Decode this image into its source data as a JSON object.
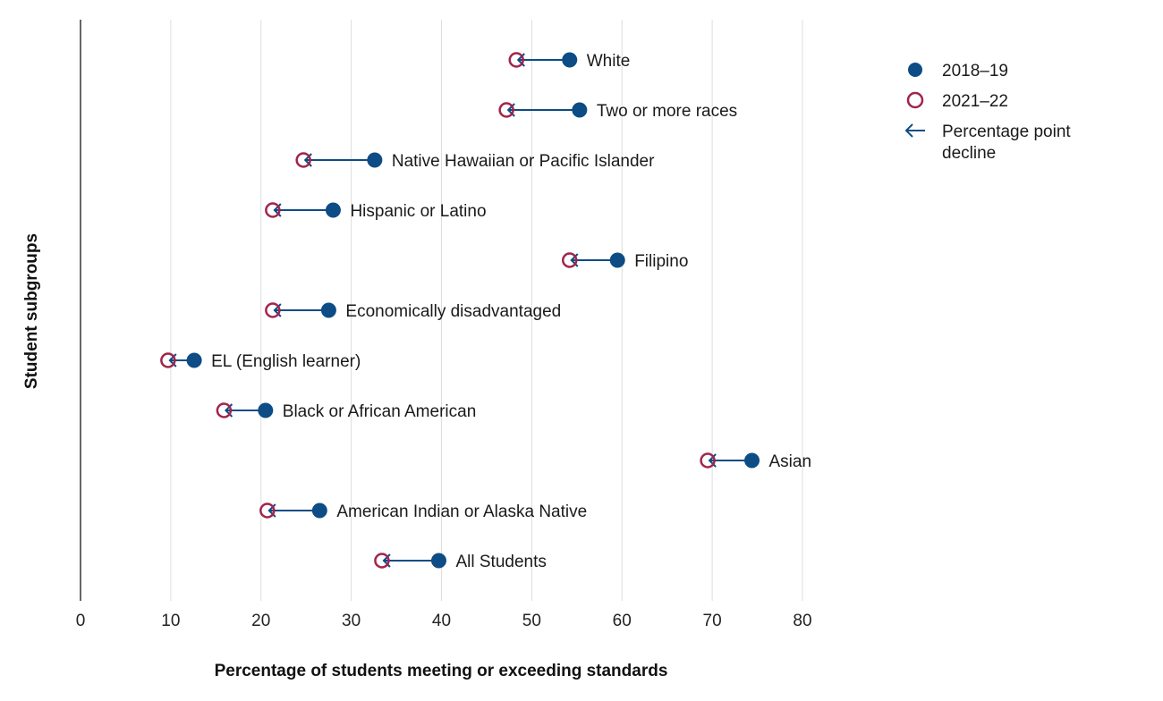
{
  "chart_data": {
    "type": "scatter",
    "subtype": "dumbbell",
    "xlabel": "Percentage of students meeting or exceeding standards",
    "ylabel": "Student subgroups",
    "xlim": [
      0,
      80
    ],
    "xticks": [
      0,
      10,
      20,
      30,
      40,
      50,
      60,
      70,
      80
    ],
    "grid": "vertical",
    "legend_position": "top-right",
    "categories": [
      "White",
      "Two or more races",
      "Native Hawaiian or Pacific Islander",
      "Hispanic or Latino",
      "Filipino",
      "Economically disadvantaged",
      "EL (English learner)",
      "Black or African American",
      "Asian",
      "American Indian or Alaska Native",
      "All Students"
    ],
    "series": [
      {
        "name": "2018–19",
        "values": [
          54.2,
          55.3,
          32.6,
          28.0,
          59.5,
          27.5,
          12.6,
          20.5,
          74.4,
          26.5,
          39.7
        ]
      },
      {
        "name": "2021–22",
        "values": [
          48.3,
          47.2,
          24.7,
          21.3,
          54.2,
          21.3,
          9.7,
          15.9,
          69.5,
          20.7,
          33.4
        ]
      }
    ],
    "legend": {
      "solid_label": "2018–19",
      "open_label": "2021–22",
      "arrow_label_line1": "Percentage point",
      "arrow_label_line2": "decline"
    },
    "colors": {
      "solid": "#0d4c85",
      "open": "#a3244a",
      "arrow": "#0d4c85",
      "grid": "#dddddd",
      "axis": "#333333"
    }
  }
}
